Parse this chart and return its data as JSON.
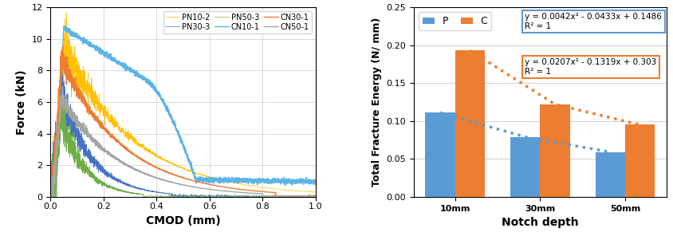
{
  "left": {
    "xlabel": "CMOD (mm)",
    "ylabel": "Force (kN)",
    "xlim": [
      0,
      1
    ],
    "ylim": [
      0,
      12
    ],
    "xticks": [
      0,
      0.2,
      0.4,
      0.6,
      0.8,
      1
    ],
    "yticks": [
      0,
      2,
      4,
      6,
      8,
      10,
      12
    ],
    "legend_entries": [
      "PN10-2",
      "PN30-3",
      "PN50-3",
      "CN10-1",
      "CN30-1",
      "CN50-1"
    ],
    "colors": {
      "PN10-2": "#FFC000",
      "PN30-3": "#4472C4",
      "PN50-3": "#70AD47",
      "CN10-1": "#5BB4E5",
      "CN30-1": "#ED7D31",
      "CN50-1": "#A5A5A5"
    }
  },
  "right": {
    "xlabel": "Notch depth",
    "ylabel": "Total Fracture Energy (N/ mm)",
    "categories": [
      "10mm",
      "30mm",
      "50mm"
    ],
    "P_values": [
      0.111,
      0.079,
      0.059
    ],
    "C_values": [
      0.193,
      0.122,
      0.095
    ],
    "P_color": "#5B9BD5",
    "C_color": "#ED7D31",
    "ylim": [
      0,
      0.25
    ],
    "yticks": [
      0,
      0.05,
      0.1,
      0.15,
      0.2,
      0.25
    ],
    "eq_blue": "y = 0.0042x² - 0.0433x + 0.1486\nR² = 1",
    "eq_orange": "y = 0.0207x² - 0.1319x + 0.303\nR² = 1",
    "dotted_blue_color": "#5B9BD5",
    "dotted_orange_color": "#ED7D31",
    "legend_labels": [
      "P",
      "C"
    ]
  }
}
